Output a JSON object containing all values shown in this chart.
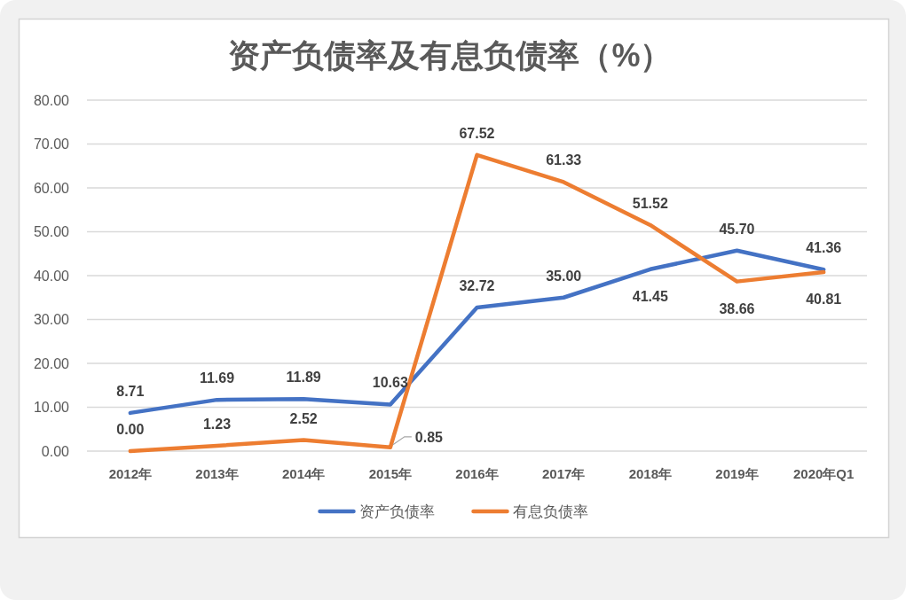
{
  "chart_data": {
    "type": "line",
    "title": "资产负债率及有息负债率（%）",
    "categories": [
      "2012年",
      "2013年",
      "2014年",
      "2015年",
      "2016年",
      "2017年",
      "2018年",
      "2019年",
      "2020年Q1"
    ],
    "series": [
      {
        "name": "资产负债率",
        "color": "#4472c4",
        "values": [
          8.71,
          11.69,
          11.89,
          10.63,
          32.72,
          35.0,
          41.45,
          45.7,
          41.36
        ],
        "value_labels": [
          "8.71",
          "11.69",
          "11.89",
          "10.63",
          "32.72",
          "35.00",
          "41.45",
          "45.70",
          "41.36"
        ]
      },
      {
        "name": "有息负债率",
        "color": "#ed7d31",
        "values": [
          0.0,
          1.23,
          2.52,
          0.85,
          67.52,
          61.33,
          51.52,
          38.66,
          40.81
        ],
        "value_labels": [
          "0.00",
          "1.23",
          "2.52",
          "0.85",
          "67.52",
          "61.33",
          "51.52",
          "38.66",
          "40.81"
        ]
      }
    ],
    "ylim": [
      0,
      80
    ],
    "yticks": [
      {
        "value": 0,
        "label": "0.00"
      },
      {
        "value": 10,
        "label": "10.00"
      },
      {
        "value": 20,
        "label": "20.00"
      },
      {
        "value": 30,
        "label": "30.00"
      },
      {
        "value": 40,
        "label": "40.00"
      },
      {
        "value": 50,
        "label": "50.00"
      },
      {
        "value": 60,
        "label": "60.00"
      },
      {
        "value": 70,
        "label": "70.00"
      },
      {
        "value": 80,
        "label": "80.00"
      }
    ],
    "grid": "y",
    "legend": "bottom",
    "marker": "none",
    "line_style": "solid"
  }
}
